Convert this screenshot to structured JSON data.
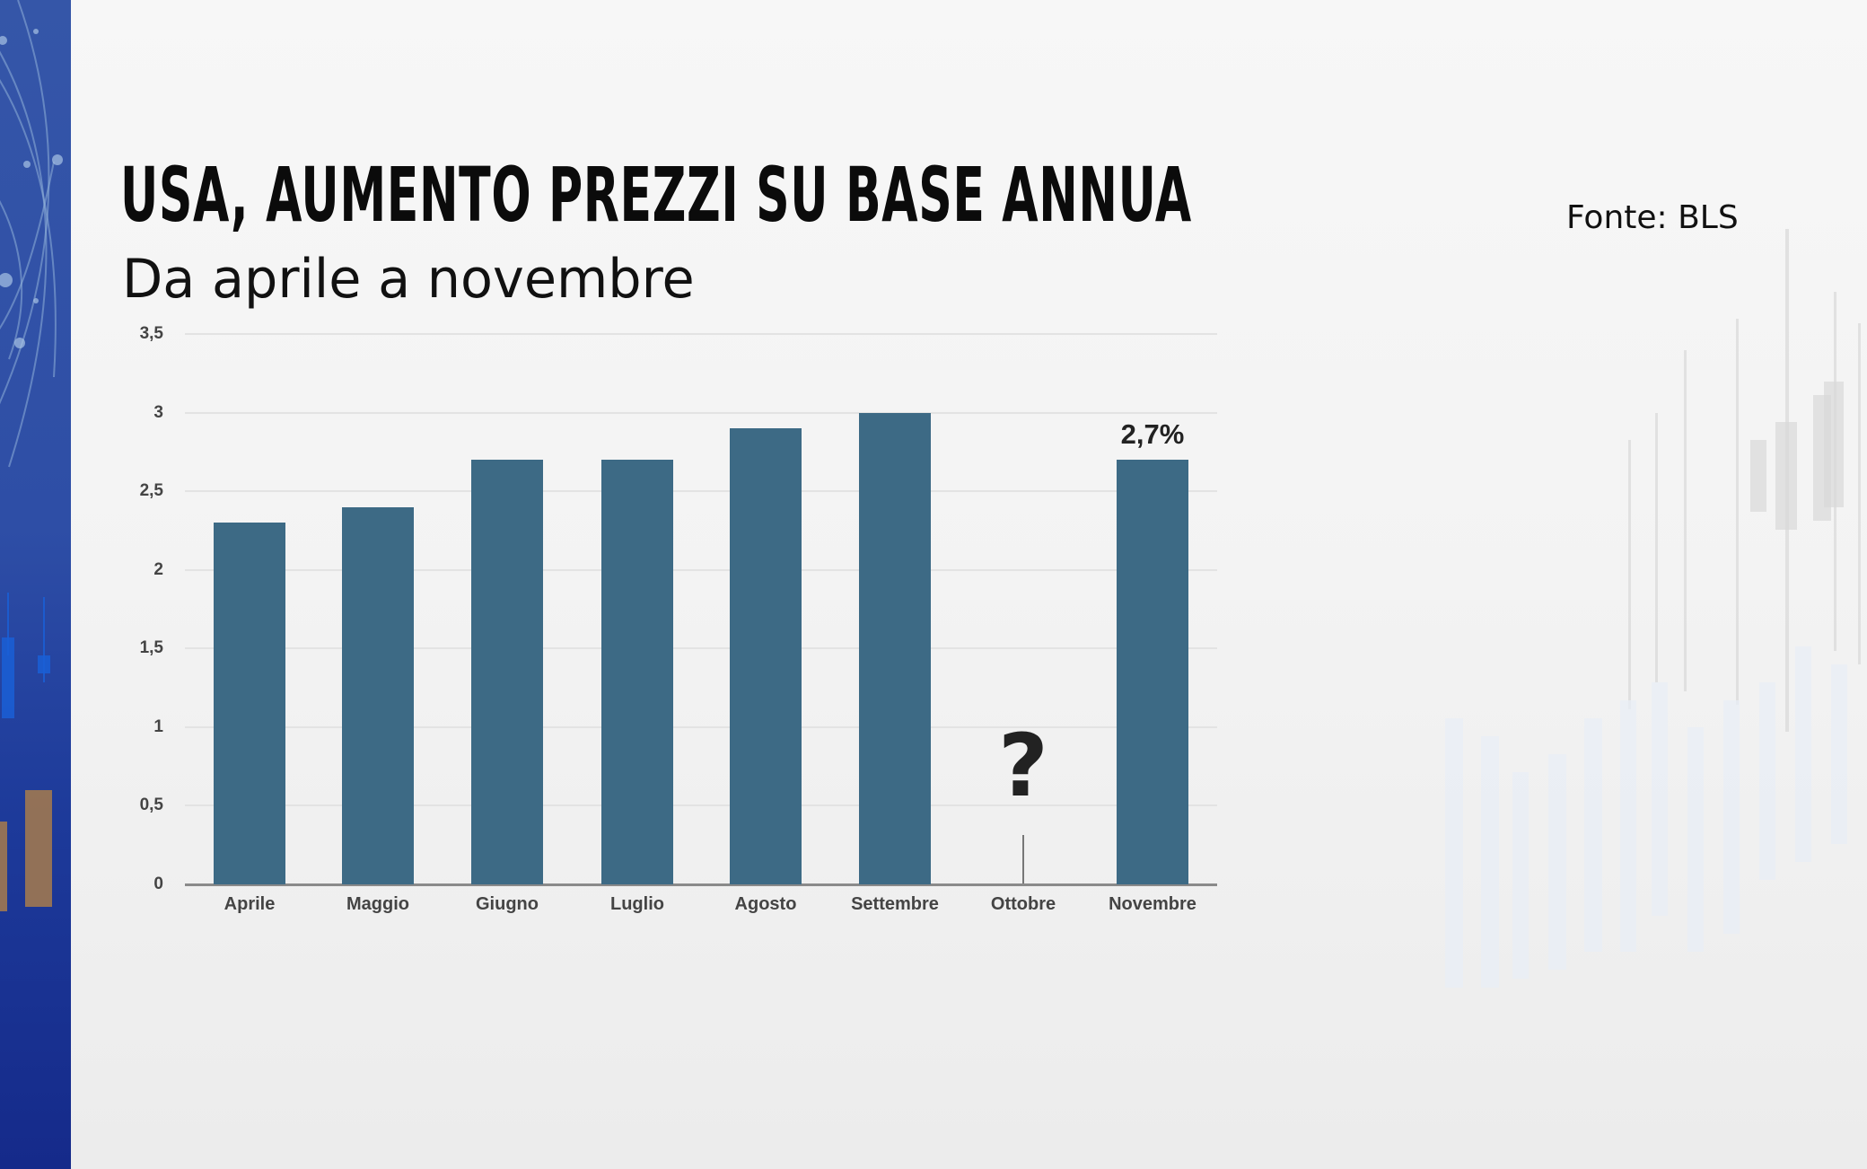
{
  "header": {
    "title": "USA, AUMENTO PREZZI SU BASE ANNUA",
    "subtitle": "Da aprile a novembre",
    "source": "Fonte: BLS"
  },
  "colors": {
    "bar": "#3d6a85",
    "sidebar": "#2e4ea6",
    "background": "#f4f4f4"
  },
  "chart_data": {
    "type": "bar",
    "title": "USA, AUMENTO PREZZI SU BASE ANNUA",
    "subtitle": "Da aprile a novembre",
    "categories": [
      "Aprile",
      "Maggio",
      "Giugno",
      "Luglio",
      "Agosto",
      "Settembre",
      "Ottobre",
      "Novembre"
    ],
    "values": [
      2.3,
      2.4,
      2.7,
      2.7,
      2.9,
      3.0,
      null,
      2.7
    ],
    "yticks": [
      "0",
      "0,5",
      "1",
      "1,5",
      "2",
      "2,5",
      "3",
      "3,5"
    ],
    "ylim": [
      0,
      3.5
    ],
    "xlabel": "",
    "ylabel": "",
    "grid": true,
    "legend": null,
    "annotations": [
      {
        "category": "Ottobre",
        "text": "?"
      },
      {
        "category": "Novembre",
        "text": "2,7%"
      }
    ],
    "source": "Fonte: BLS"
  }
}
